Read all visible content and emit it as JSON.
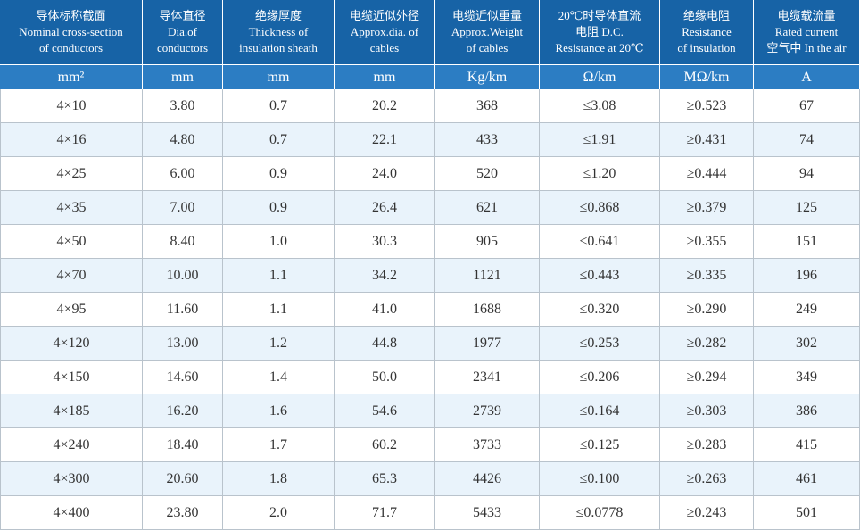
{
  "header": {
    "columns": [
      {
        "lines": [
          "导体标称截面",
          "Nominal cross-section",
          "of conductors"
        ]
      },
      {
        "lines": [
          "导体直径",
          "Dia.of",
          "conductors"
        ]
      },
      {
        "lines": [
          "绝缘厚度",
          "Thickness of",
          "insulation sheath"
        ]
      },
      {
        "lines": [
          "电缆近似外径",
          "Approx.dia. of",
          "cables"
        ]
      },
      {
        "lines": [
          "电缆近似重量",
          "Approx.Weight",
          "of cables"
        ]
      },
      {
        "lines": [
          "20℃时导体直流",
          "电阻 D.C.",
          "Resistance at 20℃"
        ]
      },
      {
        "lines": [
          "绝缘电阻",
          "Resistance",
          "of insulation"
        ]
      },
      {
        "lines": [
          "电缆载流量",
          "Rated current",
          "空气中 In the air"
        ]
      }
    ],
    "units": [
      "mm²",
      "mm",
      "mm",
      "mm",
      "Kg/km",
      "Ω/km",
      "MΩ/km",
      "A"
    ]
  },
  "table": {
    "rows": [
      [
        "4×10",
        "3.80",
        "0.7",
        "20.2",
        "368",
        "≤3.08",
        "≥0.523",
        "67"
      ],
      [
        "4×16",
        "4.80",
        "0.7",
        "22.1",
        "433",
        "≤1.91",
        "≥0.431",
        "74"
      ],
      [
        "4×25",
        "6.00",
        "0.9",
        "24.0",
        "520",
        "≤1.20",
        "≥0.444",
        "94"
      ],
      [
        "4×35",
        "7.00",
        "0.9",
        "26.4",
        "621",
        "≤0.868",
        "≥0.379",
        "125"
      ],
      [
        "4×50",
        "8.40",
        "1.0",
        "30.3",
        "905",
        "≤0.641",
        "≥0.355",
        "151"
      ],
      [
        "4×70",
        "10.00",
        "1.1",
        "34.2",
        "1121",
        "≤0.443",
        "≥0.335",
        "196"
      ],
      [
        "4×95",
        "11.60",
        "1.1",
        "41.0",
        "1688",
        "≤0.320",
        "≥0.290",
        "249"
      ],
      [
        "4×120",
        "13.00",
        "1.2",
        "44.8",
        "1977",
        "≤0.253",
        "≥0.282",
        "302"
      ],
      [
        "4×150",
        "14.60",
        "1.4",
        "50.0",
        "2341",
        "≤0.206",
        "≥0.294",
        "349"
      ],
      [
        "4×185",
        "16.20",
        "1.6",
        "54.6",
        "2739",
        "≤0.164",
        "≥0.303",
        "386"
      ],
      [
        "4×240",
        "18.40",
        "1.7",
        "60.2",
        "3733",
        "≤0.125",
        "≥0.283",
        "415"
      ],
      [
        "4×300",
        "20.60",
        "1.8",
        "65.3",
        "4426",
        "≤0.100",
        "≥0.263",
        "461"
      ],
      [
        "4×400",
        "23.80",
        "2.0",
        "71.7",
        "5433",
        "≤0.0778",
        "≥0.243",
        "501"
      ]
    ]
  }
}
